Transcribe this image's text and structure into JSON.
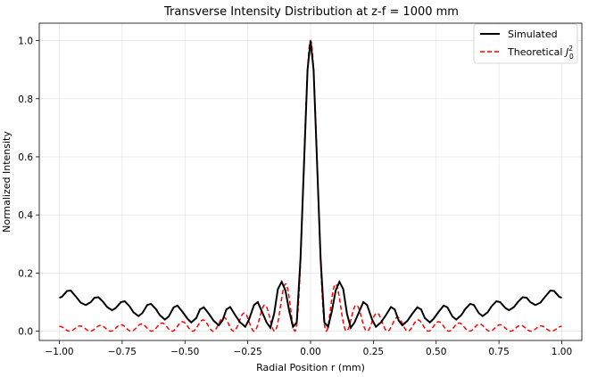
{
  "chart_data": {
    "type": "line",
    "title": "Transverse Intensity Distribution at z-f = 1000 mm",
    "xlabel": "Radial Position r (mm)",
    "ylabel": "Normalized Intensity",
    "xlim": [
      -1.08,
      1.08
    ],
    "ylim": [
      -0.032,
      1.06
    ],
    "xticks": [
      -1.0,
      -0.75,
      -0.5,
      -0.25,
      0.0,
      0.25,
      0.5,
      0.75,
      1.0
    ],
    "xtick_labels": [
      "−1.00",
      "−0.75",
      "−0.50",
      "−0.25",
      "0.00",
      "0.25",
      "0.50",
      "0.75",
      "1.00"
    ],
    "yticks": [
      0.0,
      0.2,
      0.4,
      0.6,
      0.8,
      1.0
    ],
    "ytick_labels": [
      "0.0",
      "0.2",
      "0.4",
      "0.6",
      "0.8",
      "1.0"
    ],
    "grid": true,
    "legend_position": "top-right",
    "legend_theoretical_prefix": "Theoretical ",
    "legend_theoretical_math": "J",
    "legend_theoretical_sup": "2",
    "legend_theoretical_sub": "0",
    "series": [
      {
        "name": "Simulated",
        "style": "solid",
        "color": "#000000",
        "description": "Bessel-like profile: central lobe peaking at 1.0, side lobes ~0.17 near r=±0.1, oscillating background ~0.05–0.14",
        "points": [
          [
            -1.0,
            0.115
          ],
          [
            -0.99,
            0.118
          ],
          [
            -0.97,
            0.138
          ],
          [
            -0.955,
            0.14
          ],
          [
            -0.935,
            0.12
          ],
          [
            -0.915,
            0.098
          ],
          [
            -0.895,
            0.09
          ],
          [
            -0.875,
            0.1
          ],
          [
            -0.86,
            0.115
          ],
          [
            -0.845,
            0.117
          ],
          [
            -0.825,
            0.1
          ],
          [
            -0.81,
            0.083
          ],
          [
            -0.79,
            0.072
          ],
          [
            -0.775,
            0.08
          ],
          [
            -0.755,
            0.1
          ],
          [
            -0.74,
            0.103
          ],
          [
            -0.72,
            0.085
          ],
          [
            -0.705,
            0.065
          ],
          [
            -0.685,
            0.052
          ],
          [
            -0.67,
            0.062
          ],
          [
            -0.65,
            0.09
          ],
          [
            -0.635,
            0.094
          ],
          [
            -0.615,
            0.075
          ],
          [
            -0.6,
            0.055
          ],
          [
            -0.58,
            0.04
          ],
          [
            -0.565,
            0.05
          ],
          [
            -0.545,
            0.082
          ],
          [
            -0.53,
            0.088
          ],
          [
            -0.51,
            0.067
          ],
          [
            -0.49,
            0.043
          ],
          [
            -0.475,
            0.03
          ],
          [
            -0.455,
            0.045
          ],
          [
            -0.44,
            0.075
          ],
          [
            -0.425,
            0.082
          ],
          [
            -0.405,
            0.06
          ],
          [
            -0.385,
            0.035
          ],
          [
            -0.365,
            0.02
          ],
          [
            -0.35,
            0.038
          ],
          [
            -0.335,
            0.075
          ],
          [
            -0.32,
            0.083
          ],
          [
            -0.3,
            0.055
          ],
          [
            -0.28,
            0.03
          ],
          [
            -0.26,
            0.015
          ],
          [
            -0.245,
            0.04
          ],
          [
            -0.225,
            0.09
          ],
          [
            -0.21,
            0.1
          ],
          [
            -0.195,
            0.07
          ],
          [
            -0.175,
            0.03
          ],
          [
            -0.16,
            0.012
          ],
          [
            -0.145,
            0.06
          ],
          [
            -0.13,
            0.145
          ],
          [
            -0.115,
            0.17
          ],
          [
            -0.1,
            0.14
          ],
          [
            -0.085,
            0.07
          ],
          [
            -0.07,
            0.015
          ],
          [
            -0.055,
            0.03
          ],
          [
            -0.04,
            0.25
          ],
          [
            -0.025,
            0.6
          ],
          [
            -0.012,
            0.9
          ],
          [
            0.0,
            1.0
          ],
          [
            0.012,
            0.9
          ],
          [
            0.025,
            0.6
          ],
          [
            0.04,
            0.25
          ],
          [
            0.055,
            0.03
          ],
          [
            0.07,
            0.015
          ],
          [
            0.085,
            0.07
          ],
          [
            0.1,
            0.14
          ],
          [
            0.115,
            0.17
          ],
          [
            0.13,
            0.145
          ],
          [
            0.145,
            0.06
          ],
          [
            0.16,
            0.012
          ],
          [
            0.175,
            0.03
          ],
          [
            0.195,
            0.07
          ],
          [
            0.21,
            0.1
          ],
          [
            0.225,
            0.09
          ],
          [
            0.245,
            0.04
          ],
          [
            0.26,
            0.015
          ],
          [
            0.28,
            0.03
          ],
          [
            0.3,
            0.055
          ],
          [
            0.32,
            0.083
          ],
          [
            0.335,
            0.075
          ],
          [
            0.35,
            0.038
          ],
          [
            0.365,
            0.02
          ],
          [
            0.385,
            0.035
          ],
          [
            0.405,
            0.06
          ],
          [
            0.425,
            0.082
          ],
          [
            0.44,
            0.075
          ],
          [
            0.455,
            0.045
          ],
          [
            0.475,
            0.03
          ],
          [
            0.49,
            0.043
          ],
          [
            0.51,
            0.067
          ],
          [
            0.53,
            0.088
          ],
          [
            0.545,
            0.082
          ],
          [
            0.565,
            0.05
          ],
          [
            0.58,
            0.04
          ],
          [
            0.6,
            0.055
          ],
          [
            0.615,
            0.075
          ],
          [
            0.635,
            0.094
          ],
          [
            0.65,
            0.09
          ],
          [
            0.67,
            0.062
          ],
          [
            0.685,
            0.052
          ],
          [
            0.705,
            0.065
          ],
          [
            0.72,
            0.085
          ],
          [
            0.74,
            0.103
          ],
          [
            0.755,
            0.1
          ],
          [
            0.775,
            0.08
          ],
          [
            0.79,
            0.072
          ],
          [
            0.81,
            0.083
          ],
          [
            0.825,
            0.1
          ],
          [
            0.845,
            0.117
          ],
          [
            0.86,
            0.115
          ],
          [
            0.875,
            0.1
          ],
          [
            0.895,
            0.09
          ],
          [
            0.915,
            0.098
          ],
          [
            0.935,
            0.12
          ],
          [
            0.955,
            0.14
          ],
          [
            0.97,
            0.138
          ],
          [
            0.99,
            0.118
          ],
          [
            1.0,
            0.115
          ]
        ]
      },
      {
        "name": "Theoretical J0^2",
        "style": "dashed",
        "color": "#ff0000",
        "description": "J0^2 profile: central lobe 1.0, first side lobes ~0.165 at r=±0.1, decaying ripples ~0.005–0.09"
      }
    ]
  }
}
